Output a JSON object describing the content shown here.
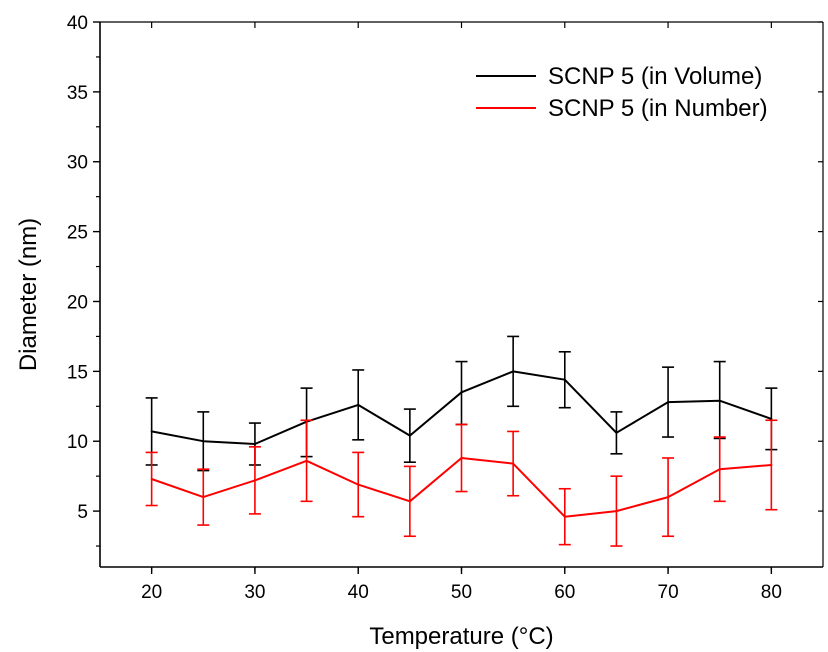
{
  "chart_data": {
    "type": "line",
    "title": "",
    "xlabel": "Temperature (°C)",
    "ylabel": "Diameter (nm)",
    "xlim": [
      15,
      85
    ],
    "ylim": [
      1,
      40
    ],
    "x_ticks": [
      20,
      30,
      40,
      50,
      60,
      70,
      80
    ],
    "x_tick_labels": [
      "20",
      "30",
      "40",
      "50",
      "60",
      "70",
      "80"
    ],
    "y_ticks": [
      5,
      10,
      15,
      20,
      25,
      30,
      35,
      40
    ],
    "y_tick_labels": [
      "5",
      "10",
      "15",
      "20",
      "25",
      "30",
      "35",
      "40"
    ],
    "grid": false,
    "legend_position": "top-right",
    "x": [
      20,
      25,
      30,
      35,
      40,
      45,
      50,
      55,
      60,
      65,
      70,
      75,
      80
    ],
    "series": [
      {
        "name": "SCNP 5 (in Volume)",
        "color": "#000000",
        "values": [
          10.7,
          10.0,
          9.8,
          11.4,
          12.6,
          10.4,
          13.5,
          15.0,
          14.4,
          10.6,
          12.8,
          12.9,
          11.6
        ],
        "error_low": [
          8.3,
          7.9,
          8.3,
          8.9,
          10.1,
          8.5,
          11.2,
          12.5,
          12.4,
          9.1,
          10.3,
          10.2,
          9.4
        ],
        "error_high": [
          13.1,
          12.1,
          11.3,
          13.8,
          15.1,
          12.3,
          15.7,
          17.5,
          16.4,
          12.1,
          15.3,
          15.7,
          13.8
        ]
      },
      {
        "name": "SCNP 5 (in Number)",
        "color": "#ff0000",
        "values": [
          7.3,
          6.0,
          7.2,
          8.6,
          6.9,
          5.7,
          8.8,
          8.4,
          4.6,
          5.0,
          6.0,
          8.0,
          8.3
        ],
        "error_low": [
          5.4,
          4.0,
          4.8,
          5.7,
          4.6,
          3.2,
          6.4,
          6.1,
          2.6,
          2.5,
          3.2,
          5.7,
          5.1
        ],
        "error_high": [
          9.2,
          8.0,
          9.6,
          11.5,
          9.2,
          8.2,
          11.2,
          10.7,
          6.6,
          7.5,
          8.8,
          10.3,
          11.5
        ]
      }
    ]
  }
}
